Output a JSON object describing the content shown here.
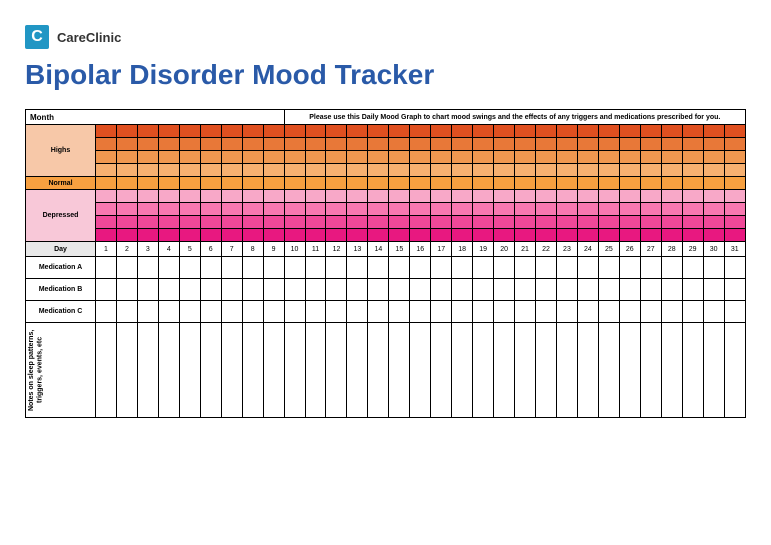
{
  "brand": {
    "logo_text": "C",
    "name": "CareClinic",
    "logo_bg": "#2196c4"
  },
  "title": "Bipolar Disorder Mood Tracker",
  "title_color": "#2a5aa8",
  "chart": {
    "month_label": "Month",
    "instructions": "Please use this Daily Mood Graph to chart mood swings and the effects of any triggers and medications prescribed for you.",
    "mood_bands": {
      "highs": {
        "label": "Highs",
        "label_bg": "#f7c8a8",
        "row_colors": [
          "#e05020",
          "#e87838",
          "#f09850",
          "#f7b070"
        ]
      },
      "normal": {
        "label": "Normal",
        "label_bg": "#f7a040",
        "row_colors": [
          "#f7a040"
        ]
      },
      "depressed": {
        "label": "Depressed",
        "label_bg": "#f8c8d8",
        "row_colors": [
          "#f8a8c8",
          "#f878b0",
          "#f04898",
          "#e81880"
        ]
      }
    },
    "day_label": "Day",
    "days": [
      1,
      2,
      3,
      4,
      5,
      6,
      7,
      8,
      9,
      10,
      11,
      12,
      13,
      14,
      15,
      16,
      17,
      18,
      19,
      20,
      21,
      22,
      23,
      24,
      25,
      26,
      27,
      28,
      29,
      30,
      31
    ],
    "medications": [
      "Medication A",
      "Medication B",
      "Medication C"
    ],
    "notes_label": "Notes on sleep patterns, triggers, events, etc"
  }
}
